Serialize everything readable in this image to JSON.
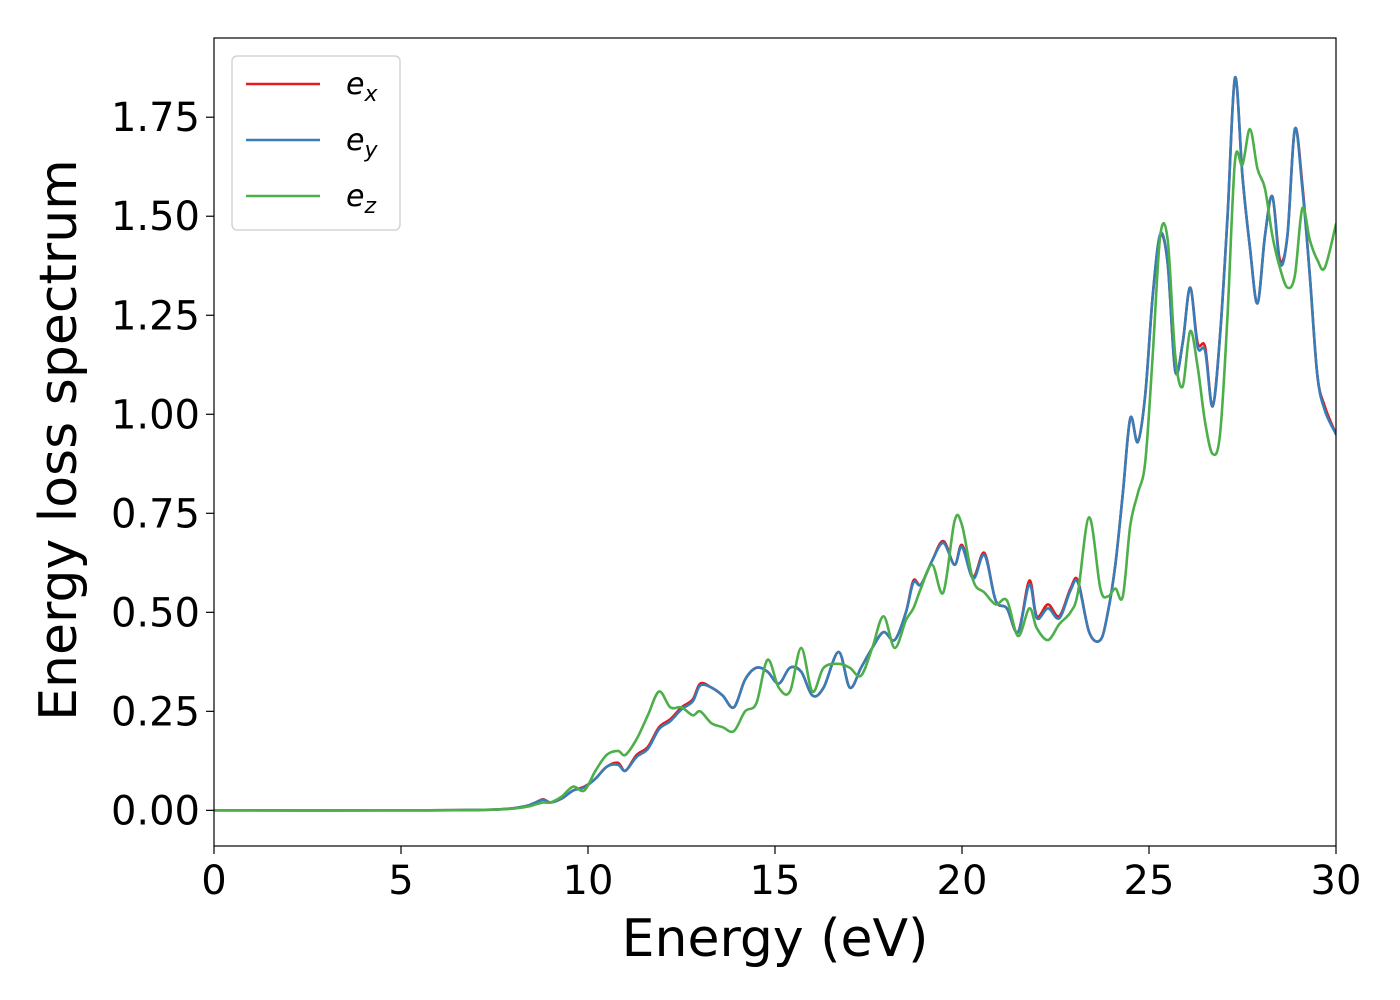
{
  "chart_data": {
    "type": "line",
    "xlabel": "Energy (eV)",
    "ylabel": "Energy loss spectrum",
    "xlim": [
      0,
      30
    ],
    "ylim": [
      -0.09,
      1.95
    ],
    "xticks": [
      0,
      5,
      10,
      15,
      20,
      25,
      30
    ],
    "xtick_labels": [
      "0",
      "5",
      "10",
      "15",
      "20",
      "25",
      "30"
    ],
    "yticks": [
      0.0,
      0.25,
      0.5,
      0.75,
      1.0,
      1.25,
      1.5,
      1.75
    ],
    "ytick_labels": [
      "0.00",
      "0.25",
      "0.50",
      "0.75",
      "1.00",
      "1.25",
      "1.50",
      "1.75"
    ],
    "grid": false,
    "legend_position": "top-left",
    "series": [
      {
        "name": "e_x",
        "label_base": "e",
        "label_sub": "x",
        "color": "#e41a1c",
        "x": [
          0,
          5,
          7.5,
          8.3,
          8.6,
          8.8,
          9.0,
          9.3,
          9.6,
          9.9,
          10.2,
          10.5,
          10.8,
          11.0,
          11.3,
          11.6,
          11.9,
          12.2,
          12.5,
          12.8,
          13.0,
          13.3,
          13.6,
          13.9,
          14.2,
          14.5,
          14.8,
          15.1,
          15.4,
          15.7,
          16.0,
          16.3,
          16.7,
          17.0,
          17.3,
          17.6,
          17.9,
          18.2,
          18.5,
          18.7,
          18.9,
          19.2,
          19.5,
          19.8,
          20.0,
          20.3,
          20.6,
          20.9,
          21.2,
          21.5,
          21.8,
          22.0,
          22.3,
          22.6,
          22.9,
          23.1,
          23.4,
          23.7,
          23.9,
          24.1,
          24.3,
          24.5,
          24.7,
          24.9,
          25.1,
          25.3,
          25.5,
          25.7,
          25.9,
          26.1,
          26.3,
          26.5,
          26.7,
          26.9,
          27.1,
          27.3,
          27.5,
          27.7,
          27.9,
          28.1,
          28.3,
          28.5,
          28.7,
          28.9,
          29.1,
          29.3,
          29.5,
          29.7,
          30
        ],
        "values": [
          0.0,
          0.0,
          0.002,
          0.01,
          0.02,
          0.028,
          0.02,
          0.03,
          0.05,
          0.06,
          0.08,
          0.11,
          0.12,
          0.1,
          0.14,
          0.16,
          0.21,
          0.23,
          0.26,
          0.28,
          0.32,
          0.31,
          0.29,
          0.26,
          0.33,
          0.36,
          0.35,
          0.32,
          0.36,
          0.35,
          0.29,
          0.31,
          0.4,
          0.31,
          0.36,
          0.41,
          0.45,
          0.43,
          0.5,
          0.58,
          0.57,
          0.63,
          0.68,
          0.62,
          0.67,
          0.59,
          0.65,
          0.53,
          0.51,
          0.45,
          0.58,
          0.49,
          0.52,
          0.49,
          0.56,
          0.58,
          0.45,
          0.43,
          0.5,
          0.62,
          0.8,
          0.99,
          0.93,
          1.05,
          1.3,
          1.45,
          1.38,
          1.11,
          1.18,
          1.32,
          1.18,
          1.17,
          1.02,
          1.2,
          1.5,
          1.85,
          1.6,
          1.42,
          1.28,
          1.45,
          1.55,
          1.39,
          1.45,
          1.72,
          1.58,
          1.35,
          1.1,
          1.02,
          0.95
        ]
      },
      {
        "name": "e_y",
        "label_base": "e",
        "label_sub": "y",
        "color": "#377eb8",
        "x": [
          0,
          5,
          7.5,
          8.3,
          8.6,
          8.8,
          9.0,
          9.3,
          9.6,
          9.9,
          10.2,
          10.5,
          10.8,
          11.0,
          11.3,
          11.6,
          11.9,
          12.2,
          12.5,
          12.8,
          13.0,
          13.3,
          13.6,
          13.9,
          14.2,
          14.5,
          14.8,
          15.1,
          15.4,
          15.7,
          16.0,
          16.3,
          16.7,
          17.0,
          17.3,
          17.6,
          17.9,
          18.2,
          18.5,
          18.7,
          18.9,
          19.2,
          19.5,
          19.8,
          20.0,
          20.3,
          20.6,
          20.9,
          21.2,
          21.5,
          21.8,
          22.0,
          22.3,
          22.6,
          22.9,
          23.1,
          23.4,
          23.7,
          23.9,
          24.1,
          24.3,
          24.5,
          24.7,
          24.9,
          25.1,
          25.3,
          25.5,
          25.7,
          25.9,
          26.1,
          26.3,
          26.5,
          26.7,
          26.9,
          27.1,
          27.3,
          27.5,
          27.7,
          27.9,
          28.1,
          28.3,
          28.5,
          28.7,
          28.9,
          29.1,
          29.3,
          29.5,
          29.7,
          30
        ],
        "values": [
          0.0,
          0.0,
          0.002,
          0.01,
          0.02,
          0.027,
          0.02,
          0.03,
          0.05,
          0.058,
          0.08,
          0.11,
          0.115,
          0.1,
          0.135,
          0.155,
          0.205,
          0.225,
          0.255,
          0.275,
          0.315,
          0.31,
          0.29,
          0.26,
          0.33,
          0.36,
          0.35,
          0.32,
          0.36,
          0.35,
          0.29,
          0.31,
          0.4,
          0.31,
          0.36,
          0.41,
          0.45,
          0.43,
          0.5,
          0.575,
          0.57,
          0.63,
          0.675,
          0.62,
          0.665,
          0.585,
          0.645,
          0.53,
          0.51,
          0.45,
          0.57,
          0.485,
          0.51,
          0.485,
          0.555,
          0.575,
          0.45,
          0.43,
          0.5,
          0.62,
          0.8,
          0.99,
          0.93,
          1.05,
          1.3,
          1.455,
          1.38,
          1.11,
          1.18,
          1.32,
          1.17,
          1.16,
          1.02,
          1.2,
          1.5,
          1.85,
          1.6,
          1.42,
          1.28,
          1.45,
          1.55,
          1.38,
          1.45,
          1.72,
          1.57,
          1.35,
          1.1,
          1.01,
          0.95
        ]
      },
      {
        "name": "e_z",
        "label_base": "e",
        "label_sub": "z",
        "color": "#4daf4a",
        "x": [
          0,
          5,
          7.5,
          8.3,
          8.6,
          8.8,
          9.0,
          9.3,
          9.6,
          9.9,
          10.2,
          10.5,
          10.8,
          11.0,
          11.3,
          11.6,
          11.9,
          12.2,
          12.5,
          12.8,
          13.0,
          13.3,
          13.6,
          13.9,
          14.2,
          14.5,
          14.8,
          15.1,
          15.4,
          15.7,
          16.0,
          16.3,
          16.7,
          17.0,
          17.3,
          17.6,
          17.9,
          18.2,
          18.5,
          18.7,
          18.9,
          19.2,
          19.5,
          19.8,
          20.0,
          20.3,
          20.6,
          20.9,
          21.2,
          21.5,
          21.8,
          22.0,
          22.3,
          22.6,
          22.9,
          23.1,
          23.4,
          23.7,
          23.9,
          24.1,
          24.3,
          24.5,
          24.7,
          24.9,
          25.1,
          25.3,
          25.5,
          25.7,
          25.9,
          26.1,
          26.3,
          26.5,
          26.7,
          26.9,
          27.1,
          27.3,
          27.5,
          27.7,
          27.9,
          28.1,
          28.3,
          28.5,
          28.7,
          28.9,
          29.1,
          29.3,
          29.5,
          29.7,
          30
        ],
        "values": [
          0.0,
          0.0,
          0.002,
          0.008,
          0.015,
          0.02,
          0.02,
          0.035,
          0.06,
          0.05,
          0.1,
          0.14,
          0.15,
          0.14,
          0.18,
          0.24,
          0.3,
          0.26,
          0.26,
          0.24,
          0.25,
          0.22,
          0.21,
          0.2,
          0.25,
          0.27,
          0.38,
          0.31,
          0.3,
          0.41,
          0.3,
          0.36,
          0.37,
          0.36,
          0.34,
          0.41,
          0.49,
          0.41,
          0.48,
          0.51,
          0.56,
          0.62,
          0.55,
          0.73,
          0.72,
          0.58,
          0.55,
          0.52,
          0.53,
          0.44,
          0.51,
          0.46,
          0.43,
          0.47,
          0.5,
          0.55,
          0.74,
          0.56,
          0.54,
          0.56,
          0.54,
          0.72,
          0.8,
          0.88,
          1.15,
          1.45,
          1.44,
          1.15,
          1.07,
          1.21,
          1.12,
          0.98,
          0.9,
          0.95,
          1.25,
          1.64,
          1.63,
          1.72,
          1.62,
          1.57,
          1.45,
          1.37,
          1.32,
          1.35,
          1.52,
          1.44,
          1.39,
          1.37,
          1.48
        ]
      }
    ]
  }
}
